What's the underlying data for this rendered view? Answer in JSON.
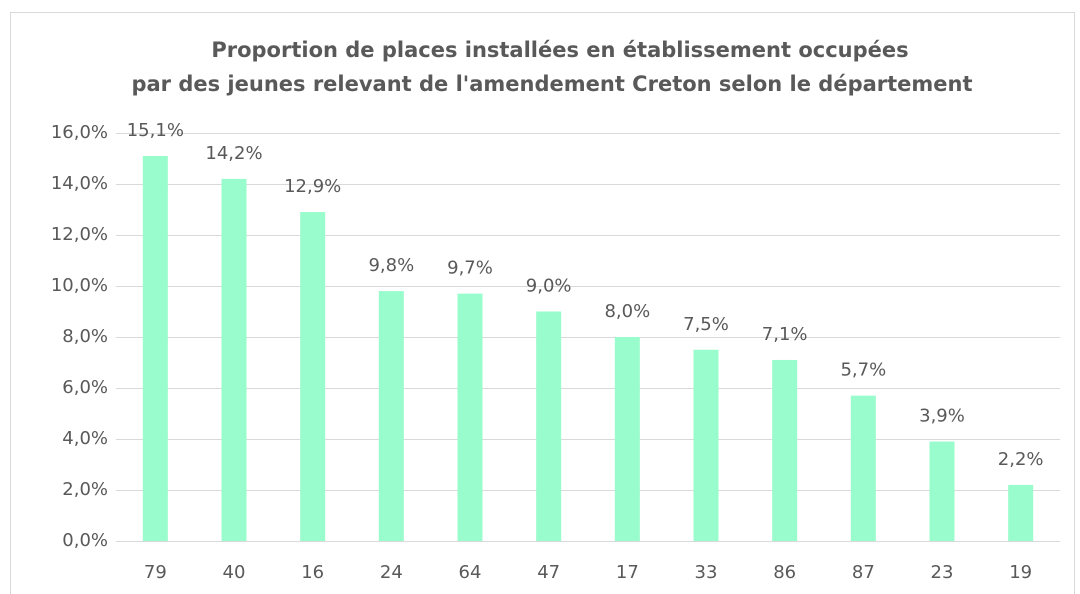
{
  "chart_data": {
    "type": "bar",
    "title": [
      "Proportion  de places installées en établissement occupées",
      "par des jeunes relevant de l'amendement Creton selon le département"
    ],
    "categories": [
      "79",
      "40",
      "16",
      "24",
      "64",
      "47",
      "17",
      "33",
      "86",
      "87",
      "23",
      "19"
    ],
    "values": [
      15.1,
      14.2,
      12.9,
      9.8,
      9.7,
      9.0,
      8.0,
      7.5,
      7.1,
      5.7,
      3.9,
      2.2
    ],
    "value_labels": [
      "15,1%",
      "14,2%",
      "12,9%",
      "9,8%",
      "9,7%",
      "9,0%",
      "8,0%",
      "7,5%",
      "7,1%",
      "5,7%",
      "3,9%",
      "2,2%"
    ],
    "color": "#99fccc",
    "ylim": [
      0,
      16
    ],
    "yticks": [
      {
        "value": 0,
        "label": "0,0%"
      },
      {
        "value": 2,
        "label": "2,0%"
      },
      {
        "value": 4,
        "label": "4,0%"
      },
      {
        "value": 6,
        "label": "6,0%"
      },
      {
        "value": 8,
        "label": "8,0%"
      },
      {
        "value": 10,
        "label": "10,0%"
      },
      {
        "value": 12,
        "label": "12,0%"
      },
      {
        "value": 14,
        "label": "14,0%"
      },
      {
        "value": 16,
        "label": "16,0%"
      }
    ],
    "grid": true
  }
}
